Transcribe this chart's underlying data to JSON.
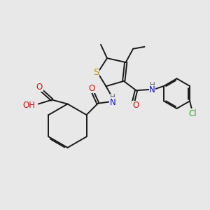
{
  "bg_color": "#e8e8e8",
  "bond_color": "#1a1a1a",
  "S_color": "#b8900a",
  "N_color": "#1010cc",
  "O_color": "#cc1010",
  "Cl_color": "#30a030",
  "H_color": "#606060",
  "font_size": 8.5,
  "figsize": [
    3.0,
    3.0
  ],
  "dpi": 100,
  "xlim": [
    0,
    10
  ],
  "ylim": [
    0,
    10
  ]
}
